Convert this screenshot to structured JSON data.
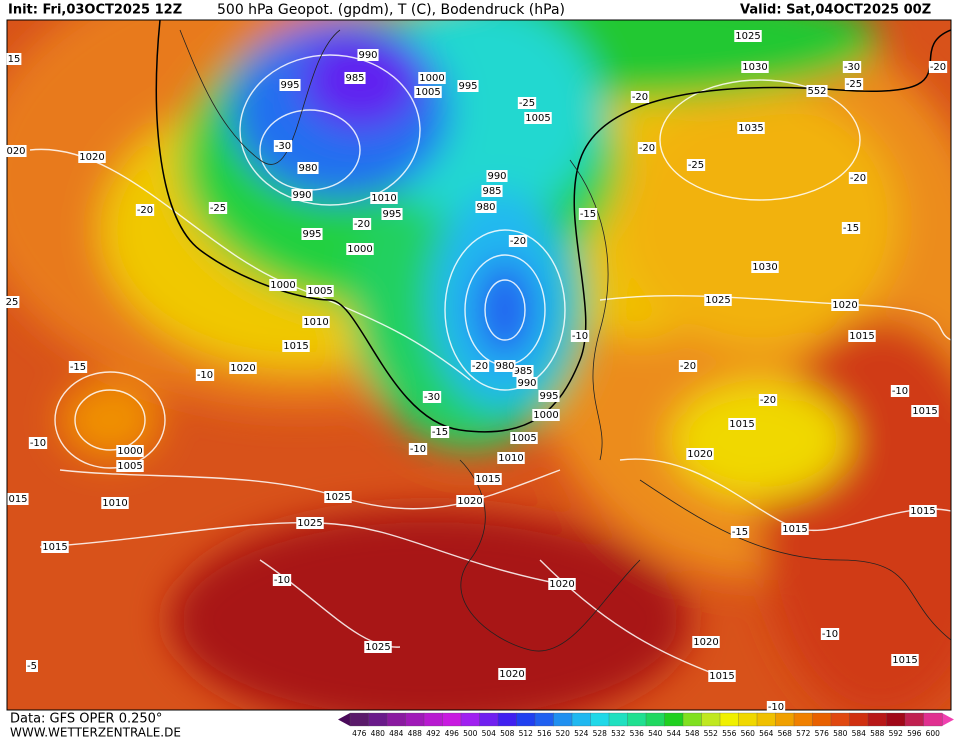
{
  "header": {
    "init": "Init: Fri,03OCT2025 12Z",
    "title": "500 hPa Geopot. (gpdm), T (C), Bodendruck (hPa)",
    "valid": "Valid: Sat,04OCT2025 00Z"
  },
  "footer": {
    "source": "Data: GFS OPER 0.250°",
    "website": "WWW.WETTERZENTRALE.DE"
  },
  "colorbar": {
    "labels": [
      476,
      480,
      484,
      488,
      492,
      496,
      500,
      504,
      508,
      512,
      516,
      520,
      524,
      528,
      532,
      536,
      540,
      544,
      548,
      552,
      556,
      560,
      564,
      568,
      572,
      576,
      580,
      584,
      588,
      592,
      596,
      600
    ]
  },
  "map": {
    "labels": [
      "990",
      "985",
      "995",
      "1000",
      "1005",
      "995",
      "-30",
      "980",
      "990",
      "-25",
      "995",
      "1000",
      "1010",
      "995",
      "-20",
      "990",
      "985",
      "980",
      "-20",
      "1000",
      "1005",
      "1010",
      "1015",
      "1020",
      "-10",
      "-15",
      "-10",
      "1000",
      "1005",
      "1010",
      "1025",
      "1025",
      "1020",
      "1015",
      "1010",
      "1005",
      "1000",
      "995",
      "990",
      "985",
      "980",
      "-20",
      "-30",
      "-15",
      "-10",
      "1015",
      "-10",
      "1025",
      "1020",
      "1020",
      "1020",
      "-15",
      "1015",
      "1015",
      "-20",
      "-20",
      "1025",
      "1020",
      "1015",
      "1030",
      "1035",
      "-25",
      "-20",
      "-20",
      "1030",
      "1025",
      "552",
      "-30",
      "-25",
      "-20",
      "-20",
      "-15",
      "-15",
      "-10",
      "-25",
      "1005",
      "1020",
      "020",
      "15",
      "-20",
      "1015",
      "-10",
      "1015",
      "-10",
      "1015",
      "1015",
      "1020",
      "-5",
      "015",
      "25",
      "-10"
    ]
  }
}
